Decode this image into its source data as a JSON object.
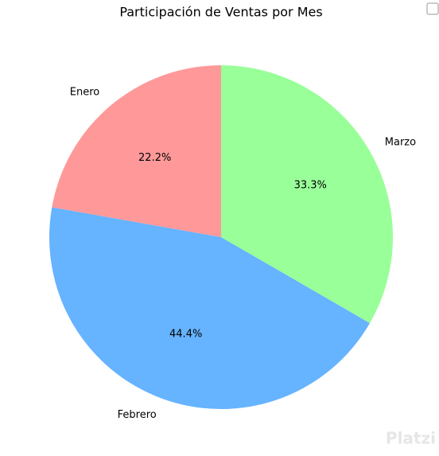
{
  "chart_data": {
    "type": "pie",
    "title": "Participación de Ventas por Mes",
    "categories": [
      "Enero",
      "Febrero",
      "Marzo"
    ],
    "values": [
      22.2,
      44.4,
      33.3
    ],
    "value_labels": [
      "22.2%",
      "44.4%",
      "33.3%"
    ],
    "colors": [
      "#ff9999",
      "#66b3ff",
      "#99ff99"
    ],
    "start_angle": 90,
    "counterclock": true
  },
  "watermark": "Platzi"
}
